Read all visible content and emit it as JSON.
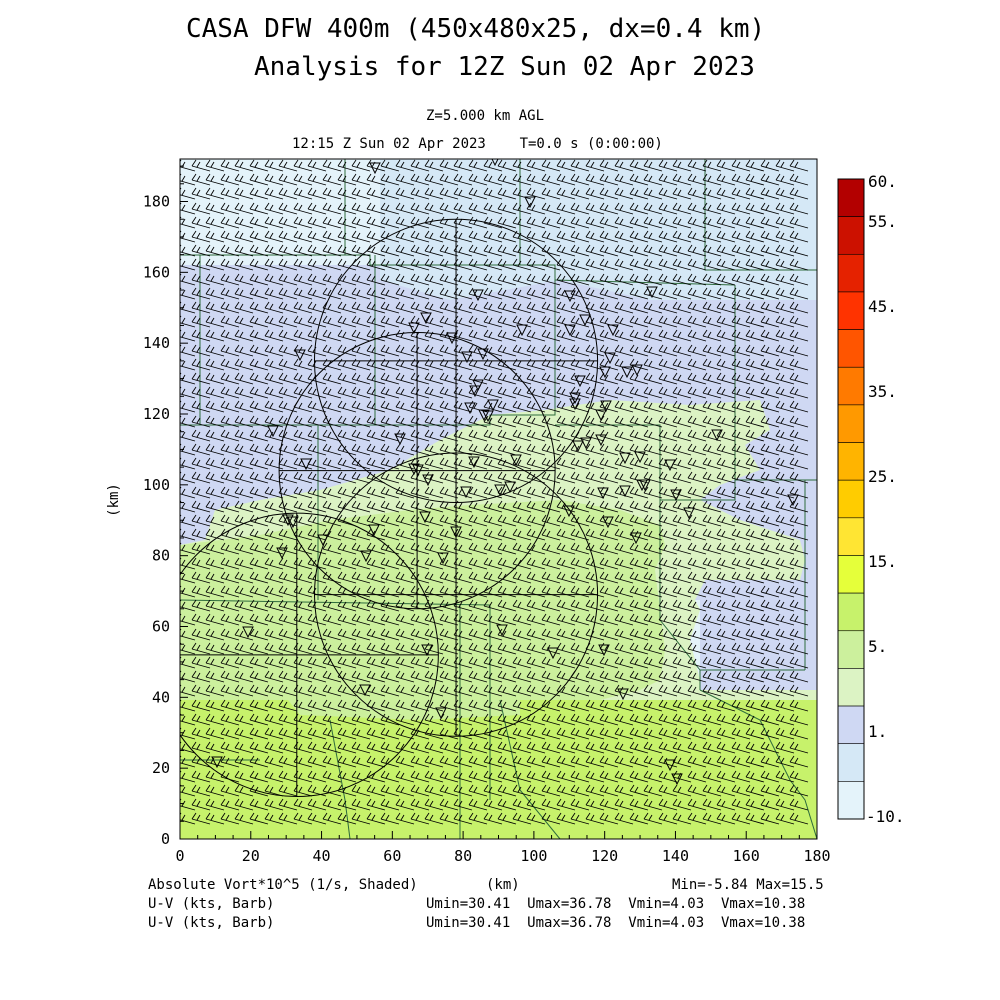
{
  "header": {
    "title_line1": "CASA DFW 400m (450x480x25, dx=0.4 km)",
    "title_line2": "Analysis for 12Z Sun 02 Apr 2023",
    "level": "Z=5.000 km AGL",
    "time": "12:15 Z Sun 02 Apr 2023    T=0.0 s (0:00:00)"
  },
  "footer": {
    "field_label": "Absolute Vort*10^5 (1/s, Shaded)",
    "x_unit": "(km)",
    "minmax": "Min=-5.84 Max=15.5",
    "barb_label_1": "U-V (kts, Barb)",
    "barb_stats_1": "Umin=30.41  Umax=36.78  Vmin=4.03  Vmax=10.38",
    "barb_label_2": "U-V (kts, Barb)",
    "barb_stats_2": "Umin=30.41  Umax=36.78  Vmin=4.03  Vmax=10.38"
  },
  "colors": {
    "lt_blue_1": "#e4f3fa",
    "lt_blue_2": "#d5e8f6",
    "lavender": "#cfd8f3",
    "pale_green": "#dcf3c4",
    "light_green": "#ccf09d",
    "lime": "#c7f26b",
    "yellow": "#ffdd33"
  },
  "chart_data": {
    "type": "heatmap",
    "xlabel": "",
    "ylabel": "(km)",
    "xlim": [
      0,
      180
    ],
    "ylim": [
      0,
      192
    ],
    "x_ticks": [
      "0",
      "20",
      "40",
      "60",
      "80",
      "100",
      "120",
      "140",
      "160",
      "180"
    ],
    "y_ticks": [
      "0",
      "20",
      "40",
      "60",
      "80",
      "100",
      "120",
      "140",
      "160",
      "180"
    ],
    "colorbar": {
      "labels": [
        "60.",
        "55.",
        "45.",
        "35.",
        "25.",
        "15.",
        "5.",
        "1.",
        "-10."
      ],
      "colors": [
        "#b30000",
        "#cc1100",
        "#e52200",
        "#ff3300",
        "#ff5500",
        "#ff7a00",
        "#ff9900",
        "#ffb400",
        "#ffcc00",
        "#ffe533",
        "#e5ff3a",
        "#c7f26b",
        "#ccf09d",
        "#dcf3c4",
        "#cfd8f3",
        "#d5e8f6",
        "#e4f3fa"
      ]
    },
    "vorticity_regions": [
      {
        "level": "1.",
        "y_from": 85,
        "y_to": 125
      },
      {
        "level": "5.",
        "y_from": 0,
        "y_to": 118
      },
      {
        "level": "15.",
        "y_from": 10,
        "y_to": 36
      }
    ],
    "radar_ranges": [
      {
        "center": [
          78,
          135
        ],
        "radius": 40
      },
      {
        "center": [
          67,
          104
        ],
        "radius": 39
      },
      {
        "center": [
          78,
          69
        ],
        "radius": 40
      },
      {
        "center": [
          33,
          52
        ],
        "radius": 40
      }
    ],
    "wind_barbs": {
      "u_kts": [
        30.41,
        36.78
      ],
      "v_kts": [
        4.03,
        10.38
      ]
    },
    "min": -5.84,
    "max": 15.5
  }
}
